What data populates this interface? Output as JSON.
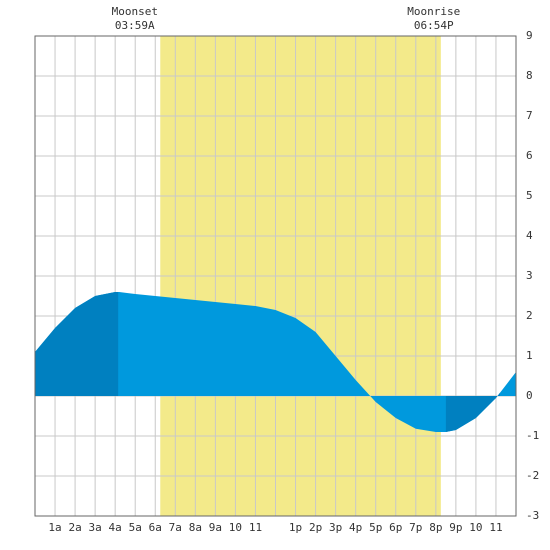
{
  "chart_data": {
    "type": "area",
    "x": [
      0,
      1,
      2,
      3,
      4,
      4.2,
      5,
      6,
      7,
      8,
      9,
      10,
      11,
      12,
      13,
      14,
      15,
      16,
      17,
      18,
      19,
      20,
      20.5,
      21,
      22,
      23,
      24
    ],
    "values": [
      1.1,
      1.7,
      2.2,
      2.5,
      2.6,
      2.6,
      2.55,
      2.5,
      2.45,
      2.4,
      2.35,
      2.3,
      2.25,
      2.15,
      1.95,
      1.6,
      1.0,
      0.4,
      -0.15,
      -0.55,
      -0.82,
      -0.9,
      -0.9,
      -0.85,
      -0.55,
      -0.05,
      0.6
    ],
    "color": "#0099dd",
    "dark_color": "#0080c0",
    "dark_spans": [
      [
        0,
        4.15
      ],
      [
        20.5,
        23.2
      ]
    ],
    "daylight": [
      6.25,
      20.25
    ],
    "daylight_color": "#f3ea8a",
    "events": [
      {
        "label": "Moonset",
        "time": "03:59A",
        "x": 3.98
      },
      {
        "label": "Moonrise",
        "time": "06:54P",
        "x": 18.9
      }
    ],
    "xlim": [
      0,
      24
    ],
    "xticks": [
      {
        "value": 1,
        "label": "1a"
      },
      {
        "value": 2,
        "label": "2a"
      },
      {
        "value": 3,
        "label": "3a"
      },
      {
        "value": 4,
        "label": "4a"
      },
      {
        "value": 5,
        "label": "5a"
      },
      {
        "value": 6,
        "label": "6a"
      },
      {
        "value": 7,
        "label": "7a"
      },
      {
        "value": 8,
        "label": "8a"
      },
      {
        "value": 9,
        "label": "9a"
      },
      {
        "value": 10,
        "label": "10"
      },
      {
        "value": 11,
        "label": "11"
      },
      {
        "value": 12,
        "label": null
      },
      {
        "value": 13,
        "label": "1p"
      },
      {
        "value": 14,
        "label": "2p"
      },
      {
        "value": 15,
        "label": "3p"
      },
      {
        "value": 16,
        "label": "4p"
      },
      {
        "value": 17,
        "label": "5p"
      },
      {
        "value": 18,
        "label": "6p"
      },
      {
        "value": 19,
        "label": "7p"
      },
      {
        "value": 20,
        "label": "8p"
      },
      {
        "value": 21,
        "label": "9p"
      },
      {
        "value": 22,
        "label": "10"
      },
      {
        "value": 23,
        "label": "11"
      }
    ],
    "ylim": [
      -3,
      9
    ],
    "yticks": [
      -3,
      -2,
      -1,
      0,
      1,
      2,
      3,
      4,
      5,
      6,
      7,
      8,
      9
    ],
    "grid": true
  }
}
